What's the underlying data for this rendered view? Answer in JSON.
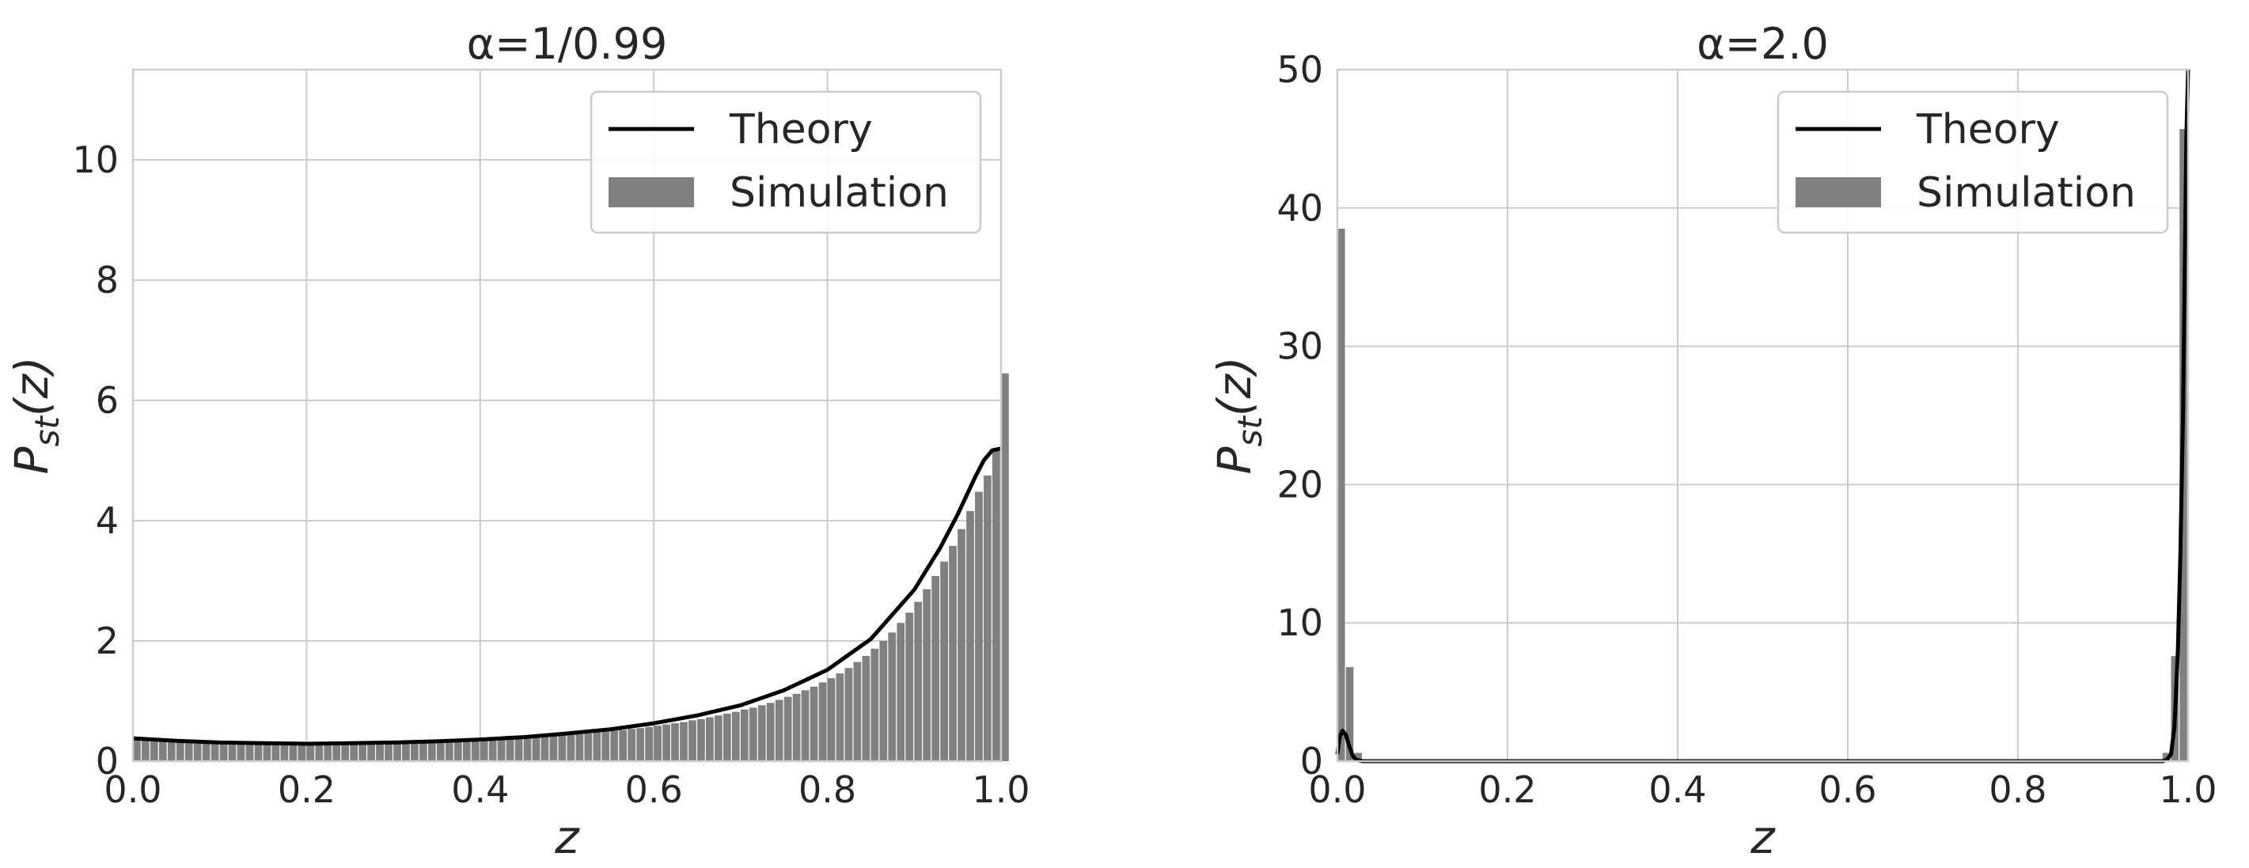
{
  "chart_data": [
    {
      "type": "bar",
      "title": "α=1/0.99",
      "xlabel": "z",
      "ylabel": "P_st(z)",
      "ylabel_main": "P",
      "ylabel_sub": "st",
      "ylabel_tail": "(z)",
      "xlim": [
        0,
        1
      ],
      "ylim": [
        0,
        11.5
      ],
      "x_ticks": [
        "0.0",
        "0.2",
        "0.4",
        "0.6",
        "0.8",
        "1.0"
      ],
      "y_ticks": [
        "0",
        "2",
        "4",
        "6",
        "8",
        "10"
      ],
      "x_tick_values": [
        0,
        0.2,
        0.4,
        0.6,
        0.8,
        1.0
      ],
      "y_tick_values": [
        0,
        2,
        4,
        6,
        8,
        10
      ],
      "grid": true,
      "legend_position": "top-right",
      "legend": [
        "Theory",
        "Simulation"
      ],
      "bin_width": 0.01,
      "series": [
        {
          "name": "Theory",
          "x": [
            0.0,
            0.05,
            0.1,
            0.15,
            0.2,
            0.25,
            0.3,
            0.35,
            0.4,
            0.45,
            0.5,
            0.55,
            0.6,
            0.65,
            0.7,
            0.75,
            0.8,
            0.85,
            0.9,
            0.93,
            0.95,
            0.97,
            0.98,
            0.99,
            1.0
          ],
          "values": [
            0.38,
            0.34,
            0.31,
            0.3,
            0.29,
            0.3,
            0.31,
            0.33,
            0.36,
            0.4,
            0.46,
            0.53,
            0.63,
            0.76,
            0.93,
            1.18,
            1.52,
            2.03,
            2.85,
            3.55,
            4.1,
            4.72,
            5.0,
            5.17,
            5.2
          ]
        },
        {
          "name": "Simulation",
          "values": [
            0.35,
            0.35,
            0.34,
            0.34,
            0.34,
            0.33,
            0.33,
            0.32,
            0.32,
            0.31,
            0.31,
            0.3,
            0.3,
            0.3,
            0.29,
            0.29,
            0.29,
            0.29,
            0.28,
            0.28,
            0.28,
            0.28,
            0.28,
            0.28,
            0.28,
            0.29,
            0.29,
            0.29,
            0.29,
            0.3,
            0.3,
            0.3,
            0.31,
            0.31,
            0.32,
            0.32,
            0.33,
            0.33,
            0.34,
            0.34,
            0.35,
            0.36,
            0.36,
            0.37,
            0.38,
            0.39,
            0.4,
            0.41,
            0.42,
            0.43,
            0.44,
            0.45,
            0.46,
            0.48,
            0.49,
            0.51,
            0.52,
            0.54,
            0.55,
            0.57,
            0.59,
            0.61,
            0.63,
            0.65,
            0.68,
            0.7,
            0.73,
            0.76,
            0.79,
            0.82,
            0.86,
            0.89,
            0.93,
            0.97,
            1.02,
            1.07,
            1.12,
            1.18,
            1.24,
            1.31,
            1.38,
            1.46,
            1.55,
            1.65,
            1.75,
            1.87,
            2.0,
            2.14,
            2.3,
            2.47,
            2.65,
            2.86,
            3.08,
            3.32,
            3.58,
            3.86,
            4.16,
            4.48,
            4.75,
            5.2,
            6.45
          ]
        }
      ]
    },
    {
      "type": "bar",
      "title": "α=2.0",
      "xlabel": "z",
      "ylabel": "P_st(z)",
      "ylabel_main": "P",
      "ylabel_sub": "st",
      "ylabel_tail": "(z)",
      "xlim": [
        0,
        1
      ],
      "ylim": [
        0,
        50
      ],
      "x_ticks": [
        "0.0",
        "0.2",
        "0.4",
        "0.6",
        "0.8",
        "1.0"
      ],
      "y_ticks": [
        "0",
        "10",
        "20",
        "30",
        "40",
        "50"
      ],
      "x_tick_values": [
        0,
        0.2,
        0.4,
        0.6,
        0.8,
        1.0
      ],
      "y_tick_values": [
        0,
        10,
        20,
        30,
        40,
        50
      ],
      "grid": true,
      "legend_position": "top-right",
      "legend": [
        "Theory",
        "Simulation"
      ],
      "bin_width": 0.01,
      "series": [
        {
          "name": "Theory",
          "x": [
            0.0,
            0.003,
            0.006,
            0.01,
            0.014,
            0.018,
            0.022,
            0.03,
            0.1,
            0.5,
            0.9,
            0.97,
            0.975,
            0.98,
            0.984,
            0.988,
            0.991,
            0.994,
            0.996,
            0.998,
            1.0
          ],
          "values": [
            0.5,
            1.8,
            2.2,
            1.9,
            1.1,
            0.4,
            0.1,
            0.0,
            0.0,
            0.0,
            0.0,
            0.0,
            0.1,
            0.5,
            2.5,
            8.0,
            15.0,
            25.0,
            35.0,
            45.0,
            50.0
          ]
        },
        {
          "name": "Simulation",
          "values": [
            38.5,
            6.8,
            0.6,
            0.08,
            0.04,
            0.02,
            0.02,
            0.01,
            0.01,
            0.01,
            0.01,
            0.01,
            0.01,
            0.01,
            0.01,
            0.01,
            0.01,
            0.01,
            0.01,
            0.01,
            0.01,
            0.01,
            0.01,
            0.01,
            0.01,
            0.01,
            0.01,
            0.01,
            0.01,
            0.01,
            0.01,
            0.01,
            0.01,
            0.01,
            0.01,
            0.01,
            0.01,
            0.01,
            0.01,
            0.01,
            0.01,
            0.01,
            0.01,
            0.01,
            0.01,
            0.01,
            0.01,
            0.01,
            0.01,
            0.01,
            0.01,
            0.01,
            0.01,
            0.01,
            0.01,
            0.01,
            0.01,
            0.01,
            0.01,
            0.01,
            0.01,
            0.01,
            0.01,
            0.01,
            0.01,
            0.01,
            0.01,
            0.01,
            0.01,
            0.01,
            0.01,
            0.01,
            0.01,
            0.01,
            0.01,
            0.01,
            0.01,
            0.01,
            0.01,
            0.01,
            0.01,
            0.01,
            0.01,
            0.01,
            0.01,
            0.01,
            0.01,
            0.01,
            0.01,
            0.01,
            0.01,
            0.01,
            0.02,
            0.02,
            0.04,
            0.08,
            0.15,
            0.6,
            7.6,
            45.7
          ]
        }
      ]
    }
  ]
}
